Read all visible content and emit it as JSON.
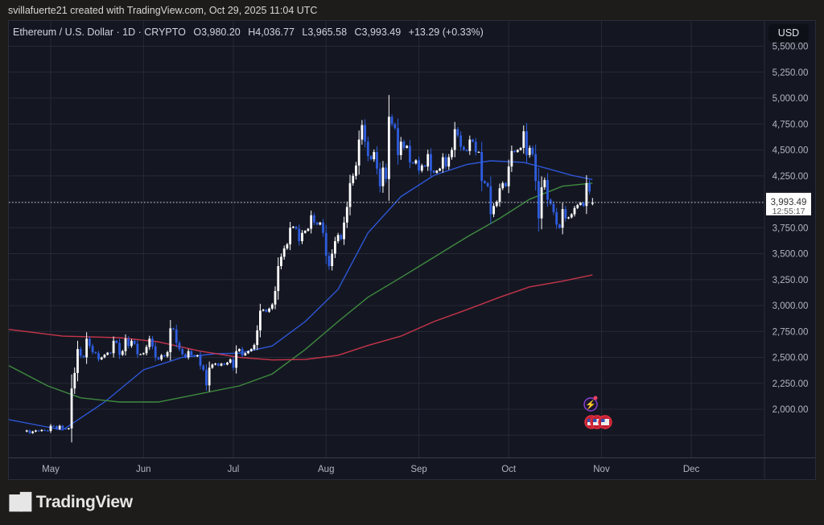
{
  "header": {
    "credit": "svillafuerte21 created with TradingView.com, Oct 29, 2025 11:04 UTC"
  },
  "legend": {
    "symbol": "Ethereum / U.S. Dollar · 1D · CRYPTO",
    "open": "O3,980.20",
    "high": "H4,036.77",
    "low": "L3,965.58",
    "close": "C3,993.49",
    "change": "+13.29 (+0.33%)"
  },
  "price_axis": {
    "currency": "USD",
    "ticks": [
      "5,500.00",
      "5,250.00",
      "5,000.00",
      "4,750.00",
      "4,500.00",
      "4,250.00",
      "3,750.00",
      "3,500.00",
      "3,250.00",
      "3,000.00",
      "2,750.00",
      "2,500.00",
      "2,250.00",
      "2,000.00"
    ],
    "last_price": "3,993.49",
    "countdown": "12:55:17"
  },
  "time_axis": {
    "labels": [
      "May",
      "Jun",
      "Jul",
      "Aug",
      "Sep",
      "Oct",
      "Nov",
      "Dec"
    ]
  },
  "colors": {
    "up": "#ffffff",
    "down": "#2f5de0",
    "ma_fast": "#2e56d6",
    "ma_mid": "#3f8a3f",
    "ma_slow": "#c8344a",
    "grid": "#262a36"
  },
  "chart_data": {
    "type": "candlestick",
    "start_date": "2025-04-23",
    "interval": "1D",
    "ylim": [
      1650,
      5550
    ],
    "grid": true,
    "closes": [
      1795,
      1770,
      1785,
      1795,
      1790,
      1800,
      1795,
      1790,
      1840,
      1835,
      1810,
      1840,
      1815,
      1810,
      1815,
      2200,
      2350,
      2580,
      2515,
      2500,
      2680,
      2610,
      2550,
      2540,
      2480,
      2500,
      2525,
      2545,
      2540,
      2660,
      2640,
      2525,
      2560,
      2680,
      2610,
      2660,
      2630,
      2530,
      2530,
      2540,
      2600,
      2680,
      2605,
      2500,
      2480,
      2520,
      2510,
      2550,
      2780,
      2770,
      2640,
      2580,
      2530,
      2500,
      2560,
      2520,
      2510,
      2520,
      2420,
      2380,
      2230,
      2400,
      2430,
      2440,
      2420,
      2440,
      2430,
      2450,
      2480,
      2400,
      2560,
      2580,
      2520,
      2540,
      2560,
      2580,
      2620,
      2760,
      2950,
      2960,
      2940,
      2970,
      3010,
      3140,
      3380,
      3470,
      3550,
      3590,
      3750,
      3760,
      3740,
      3620,
      3700,
      3720,
      3740,
      3870,
      3800,
      3780,
      3800,
      3700,
      3480,
      3380,
      3500,
      3620,
      3680,
      3640,
      3800,
      3950,
      4180,
      4250,
      4350,
      4600,
      4740,
      4580,
      4440,
      4410,
      4480,
      4320,
      4150,
      4330,
      4220,
      4820,
      4750,
      4710,
      4450,
      4580,
      4520,
      4540,
      4380,
      4370,
      4400,
      4300,
      4350,
      4340,
      4460,
      4300,
      4280,
      4300,
      4320,
      4430,
      4340,
      4430,
      4500,
      4700,
      4640,
      4530,
      4500,
      4490,
      4600,
      4580,
      4480,
      4480,
      4200,
      4180,
      4150,
      3880,
      3960,
      4000,
      4130,
      4180,
      4150,
      4340,
      4490,
      4480,
      4500,
      4520,
      4680,
      4450,
      4520,
      4460,
      4200,
      3840,
      4140,
      4210,
      4020,
      3980,
      3900,
      3780,
      3750,
      3930,
      3840,
      3850,
      3880,
      3940,
      3970,
      3990,
      3960,
      4180,
      4100,
      3993.49
    ],
    "last_candle": {
      "open": 3980.2,
      "high": 4036.77,
      "low": 3965.58,
      "close": 3993.49
    },
    "moving_averages": [
      {
        "role": "fast",
        "points": [
          [
            "2025-04-17",
            1900
          ],
          [
            "2025-05-05",
            1800
          ],
          [
            "2025-05-19",
            2070
          ],
          [
            "2025-06-01",
            2380
          ],
          [
            "2025-06-14",
            2500
          ],
          [
            "2025-06-25",
            2535
          ],
          [
            "2025-07-03",
            2540
          ],
          [
            "2025-07-14",
            2610
          ],
          [
            "2025-07-25",
            2845
          ],
          [
            "2025-08-05",
            3155
          ],
          [
            "2025-08-15",
            3700
          ],
          [
            "2025-08-26",
            4050
          ],
          [
            "2025-09-06",
            4255
          ],
          [
            "2025-09-17",
            4360
          ],
          [
            "2025-09-25",
            4395
          ],
          [
            "2025-10-06",
            4380
          ],
          [
            "2025-10-14",
            4320
          ],
          [
            "2025-10-22",
            4255
          ],
          [
            "2025-10-29",
            4215
          ]
        ]
      },
      {
        "role": "mid",
        "points": [
          [
            "2025-04-17",
            2420
          ],
          [
            "2025-04-30",
            2225
          ],
          [
            "2025-05-11",
            2110
          ],
          [
            "2025-05-24",
            2070
          ],
          [
            "2025-06-06",
            2070
          ],
          [
            "2025-06-20",
            2150
          ],
          [
            "2025-07-03",
            2225
          ],
          [
            "2025-07-14",
            2340
          ],
          [
            "2025-07-25",
            2575
          ],
          [
            "2025-08-05",
            2845
          ],
          [
            "2025-08-15",
            3080
          ],
          [
            "2025-08-26",
            3270
          ],
          [
            "2025-09-06",
            3465
          ],
          [
            "2025-09-17",
            3660
          ],
          [
            "2025-09-28",
            3840
          ],
          [
            "2025-10-08",
            4025
          ],
          [
            "2025-10-19",
            4150
          ],
          [
            "2025-10-29",
            4180
          ]
        ]
      },
      {
        "role": "slow",
        "points": [
          [
            "2025-04-17",
            2770
          ],
          [
            "2025-05-05",
            2705
          ],
          [
            "2025-05-24",
            2690
          ],
          [
            "2025-06-06",
            2650
          ],
          [
            "2025-06-20",
            2560
          ],
          [
            "2025-07-03",
            2500
          ],
          [
            "2025-07-14",
            2475
          ],
          [
            "2025-07-25",
            2480
          ],
          [
            "2025-08-05",
            2520
          ],
          [
            "2025-08-15",
            2615
          ],
          [
            "2025-08-26",
            2705
          ],
          [
            "2025-09-06",
            2845
          ],
          [
            "2025-09-17",
            2960
          ],
          [
            "2025-09-28",
            3080
          ],
          [
            "2025-10-08",
            3180
          ],
          [
            "2025-10-19",
            3235
          ],
          [
            "2025-10-29",
            3295
          ]
        ]
      }
    ]
  },
  "events": [
    {
      "icon": "lightning-icon"
    },
    {
      "icon": "us-flag-icon"
    },
    {
      "icon": "us-flag-icon"
    }
  ],
  "footer": {
    "brand": "TradingView",
    "brand_mark": "17"
  }
}
